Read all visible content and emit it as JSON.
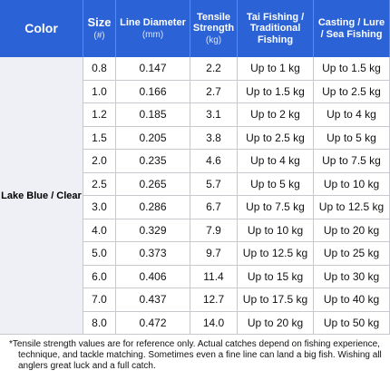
{
  "table": {
    "headers": [
      {
        "title": "Color"
      },
      {
        "title": "Size",
        "unit": "(#)"
      },
      {
        "title": "Line Diameter",
        "unit": "(mm)"
      },
      {
        "title": "Tensile Strength",
        "unit": "(kg)"
      },
      {
        "title": "Tai Fishing / Traditional Fishing"
      },
      {
        "title": "Casting / Lure / Sea Fishing"
      }
    ],
    "color": "Lake Blue / Clear",
    "rows": [
      [
        "0.8",
        "0.147",
        "2.2",
        "Up to 1 kg",
        "Up to 1.5 kg"
      ],
      [
        "1.0",
        "0.166",
        "2.7",
        "Up to 1.5 kg",
        "Up to 2.5 kg"
      ],
      [
        "1.2",
        "0.185",
        "3.1",
        "Up to 2 kg",
        "Up to 4 kg"
      ],
      [
        "1.5",
        "0.205",
        "3.8",
        "Up to 2.5 kg",
        "Up to 5 kg"
      ],
      [
        "2.0",
        "0.235",
        "4.6",
        "Up to 4 kg",
        "Up to 7.5 kg"
      ],
      [
        "2.5",
        "0.265",
        "5.7",
        "Up to 5 kg",
        "Up to 10 kg"
      ],
      [
        "3.0",
        "0.286",
        "6.7",
        "Up to 7.5 kg",
        "Up to 12.5 kg"
      ],
      [
        "4.0",
        "0.329",
        "7.9",
        "Up to 10 kg",
        "Up to 20 kg"
      ],
      [
        "5.0",
        "0.373",
        "9.7",
        "Up to 12.5 kg",
        "Up to 25 kg"
      ],
      [
        "6.0",
        "0.406",
        "11.4",
        "Up to 15 kg",
        "Up to 30 kg"
      ],
      [
        "7.0",
        "0.437",
        "12.7",
        "Up to 17.5 kg",
        "Up to 40 kg"
      ],
      [
        "8.0",
        "0.472",
        "14.0",
        "Up to 20 kg",
        "Up to 50 kg"
      ]
    ]
  },
  "footnote": "*Tensile strength values are for reference only. Actual catches depend on fishing experience, technique, and tackle matching. Sometimes even a fine line can land a big fish. Wishing all anglers great luck and a full catch."
}
